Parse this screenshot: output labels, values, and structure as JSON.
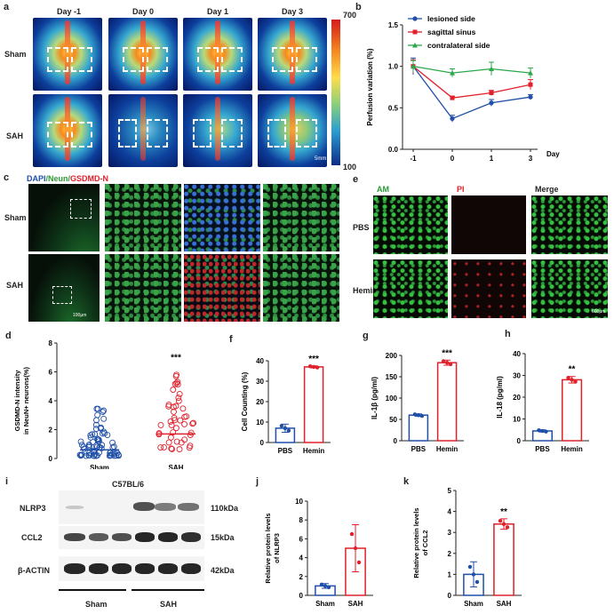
{
  "panel_a": {
    "letter": "a",
    "days": [
      "Day -1",
      "Day 0",
      "Day 1",
      "Day 3"
    ],
    "rows": [
      "Sham",
      "SAH"
    ],
    "scale_max": "700",
    "scale_min": "100",
    "scale_bar": "5mm"
  },
  "panel_b": {
    "letter": "b"
  },
  "panel_c": {
    "letter": "c",
    "title_dapi": "DAPI",
    "title_neun": "/Neun/",
    "title_gsdmd": "GSDMD-N",
    "rows": [
      "Sham",
      "SAH"
    ],
    "scale_bar": "100μm"
  },
  "panel_e": {
    "letter": "e",
    "cols": [
      "AM",
      "PI",
      "Merge"
    ],
    "rows": [
      "PBS",
      "Hemin"
    ],
    "scale_bar": "600μm"
  },
  "panel_i": {
    "letter": "i",
    "strain": "C57BL/6",
    "proteins": [
      "NLRP3",
      "CCL2",
      "β-ACTIN"
    ],
    "sizes": [
      "110kDa",
      "15kDa",
      "42kDa"
    ],
    "groups": [
      "Sham",
      "SAH"
    ]
  },
  "chart_data": [
    {
      "panel": "b",
      "type": "line",
      "ylabel": "Perfusion variation (%)",
      "xlabel": "Day",
      "x": [
        -1,
        0,
        1,
        3
      ],
      "ylim": [
        0.0,
        1.5
      ],
      "yticks": [
        "0.0",
        "0.5",
        "1.0",
        "1.5"
      ],
      "xticks": [
        "-1",
        "0",
        "1",
        "3"
      ],
      "legend_position": "top-right",
      "series": [
        {
          "name": "lesioned side",
          "color": "#1f4fa8",
          "marker": "circle",
          "values": [
            1.0,
            0.37,
            0.56,
            0.63
          ],
          "err": [
            0.1,
            0.04,
            0.04,
            0.03
          ]
        },
        {
          "name": "sagittal sinus",
          "color": "#e0202a",
          "marker": "square",
          "values": [
            1.0,
            0.62,
            0.68,
            0.78
          ],
          "err": [
            0.08,
            0.02,
            0.03,
            0.06
          ]
        },
        {
          "name": "contralateral side",
          "color": "#2aa84a",
          "marker": "triangle",
          "values": [
            1.0,
            0.92,
            0.97,
            0.92
          ],
          "err": [
            0.07,
            0.05,
            0.08,
            0.06
          ]
        }
      ]
    },
    {
      "panel": "d",
      "type": "scatter",
      "ylabel": "GSDMD-N intensity in NeuN+ neurons(%)",
      "categories": [
        "Sham",
        "SAH"
      ],
      "ylim": [
        0,
        8
      ],
      "yticks": [
        "0",
        "2",
        "4",
        "6",
        "8"
      ],
      "significance": "***",
      "series": [
        {
          "name": "Sham",
          "color": "#1f4fa8",
          "median": 0.6
        },
        {
          "name": "SAH",
          "color": "#e0202a",
          "median": 1.7
        }
      ]
    },
    {
      "panel": "f",
      "type": "bar",
      "ylabel": "Cell Counting (%)",
      "categories": [
        "PBS",
        "Hemin"
      ],
      "values": [
        7,
        37
      ],
      "err": [
        2,
        0.5
      ],
      "ylim": [
        0,
        40
      ],
      "yticks": [
        "0",
        "10",
        "20",
        "30",
        "40"
      ],
      "colors": [
        "#1f4fa8",
        "#e0202a"
      ],
      "significance": "***"
    },
    {
      "panel": "g",
      "type": "bar",
      "ylabel": "IL-1β (pg/ml)",
      "categories": [
        "PBS",
        "Hemin"
      ],
      "values": [
        60,
        183
      ],
      "err": [
        3,
        6
      ],
      "ylim": [
        0,
        200
      ],
      "yticks": [
        "0",
        "50",
        "100",
        "150",
        "200"
      ],
      "colors": [
        "#1f4fa8",
        "#e0202a"
      ],
      "significance": "***"
    },
    {
      "panel": "h",
      "type": "bar",
      "ylabel": "IL-18 (pg/ml)",
      "categories": [
        "PBS",
        "Hemin"
      ],
      "values": [
        4.5,
        28
      ],
      "err": [
        0.5,
        1.5
      ],
      "ylim": [
        0,
        40
      ],
      "yticks": [
        "0",
        "10",
        "20",
        "30",
        "40"
      ],
      "colors": [
        "#1f4fa8",
        "#e0202a"
      ],
      "significance": "**"
    },
    {
      "panel": "j",
      "type": "bar",
      "ylabel": "Relative protein levels of NLRP3",
      "categories": [
        "Sham",
        "SAH"
      ],
      "values": [
        1.0,
        5.0
      ],
      "err": [
        0.25,
        2.5
      ],
      "ylim": [
        0,
        10
      ],
      "yticks": [
        "0",
        "2",
        "4",
        "6",
        "8",
        "10"
      ],
      "colors": [
        "#1f4fa8",
        "#e0202a"
      ],
      "significance": ""
    },
    {
      "panel": "k",
      "type": "bar",
      "ylabel": "Relative protein levels of CCL2",
      "categories": [
        "Sham",
        "SAH"
      ],
      "values": [
        1.0,
        3.4
      ],
      "err": [
        0.6,
        0.25
      ],
      "ylim": [
        0,
        5
      ],
      "yticks": [
        "0",
        "1",
        "2",
        "3",
        "4",
        "5"
      ],
      "colors": [
        "#1f4fa8",
        "#e0202a"
      ],
      "significance": "**"
    }
  ]
}
